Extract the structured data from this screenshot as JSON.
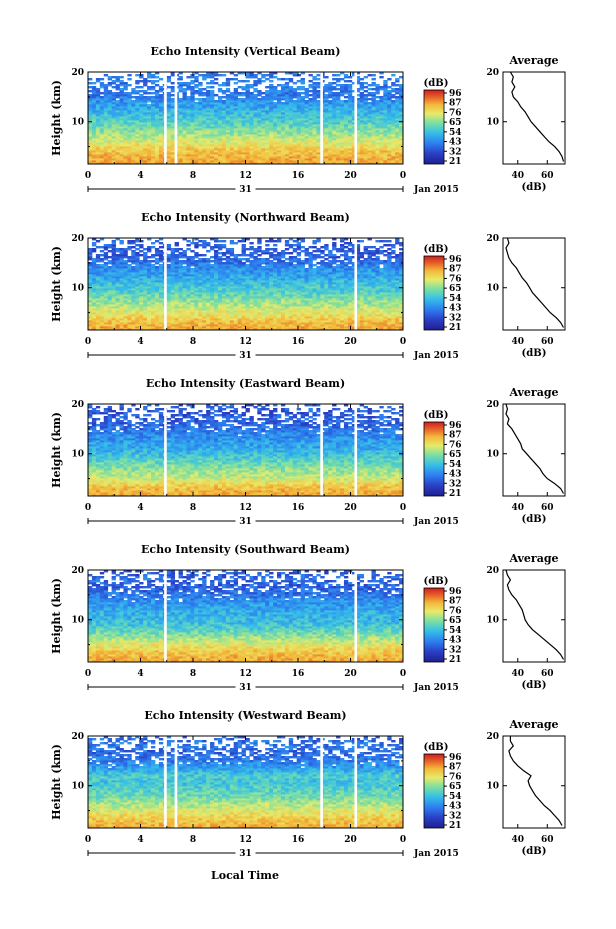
{
  "figure": {
    "xlabel": "Local Time",
    "date_label": "Jan 2015",
    "day_label": "31",
    "colorbar_unit": "(dB)",
    "colorbar_ticks": [
      "96",
      "87",
      "76",
      "65",
      "54",
      "43",
      "32",
      "21"
    ],
    "avg_title": "Average",
    "avg_xlabel": "(dB)",
    "ylabel": "Height (km)"
  },
  "chart_data": [
    {
      "type": "heatmap",
      "title": "Echo Intensity (Vertical Beam)",
      "xlabel": "Local Time",
      "ylabel": "Height (km)",
      "x_ticks": [
        "0",
        "4",
        "8",
        "12",
        "16",
        "20",
        "0"
      ],
      "xlim": [
        0,
        24
      ],
      "y_ticks": [
        "10",
        "20"
      ],
      "ylim": [
        1.5,
        20
      ],
      "color_scale": {
        "min": 21,
        "max": 96,
        "unit": "dB",
        "colors": [
          "#1f1f8f",
          "#2b3fc6",
          "#2d7ff0",
          "#35bfe8",
          "#7fe0a0",
          "#e8ea6a",
          "#f3b93a",
          "#e8642a",
          "#cc1f1f"
        ]
      },
      "gap_hours": [
        [
          5.8,
          6.0
        ],
        [
          6.6,
          6.8
        ],
        [
          17.7,
          17.9
        ],
        [
          20.3,
          20.5
        ]
      ],
      "average_profile": {
        "title": "Average",
        "xlabel": "(dB)",
        "x_ticks": [
          "40",
          "60"
        ],
        "xlim": [
          30,
          72
        ],
        "y_ticks": [
          "10",
          "20"
        ],
        "ylim": [
          1.5,
          20
        ],
        "height_km": [
          2,
          3,
          4,
          5,
          6,
          7,
          8,
          9,
          10,
          11,
          12,
          13,
          14,
          15,
          16,
          17,
          18,
          19,
          20
        ],
        "value_db": [
          71,
          70,
          68,
          65,
          61,
          58,
          55,
          52,
          49,
          47,
          45,
          42,
          40,
          37,
          36,
          38,
          36,
          37,
          35
        ]
      }
    },
    {
      "type": "heatmap",
      "title": "Echo Intensity (Northward Beam)",
      "xlabel": "Local Time",
      "ylabel": "Height (km)",
      "x_ticks": [
        "0",
        "4",
        "8",
        "12",
        "16",
        "20",
        "0"
      ],
      "xlim": [
        0,
        24
      ],
      "y_ticks": [
        "10",
        "20"
      ],
      "ylim": [
        1.5,
        20
      ],
      "color_scale": {
        "min": 21,
        "max": 96,
        "unit": "dB",
        "colors": [
          "#1f1f8f",
          "#2b3fc6",
          "#2d7ff0",
          "#35bfe8",
          "#7fe0a0",
          "#e8ea6a",
          "#f3b93a",
          "#e8642a",
          "#cc1f1f"
        ]
      },
      "gap_hours": [
        [
          5.8,
          6.0
        ],
        [
          20.3,
          20.5
        ]
      ],
      "average_profile": {
        "title": "",
        "xlabel": "(dB)",
        "x_ticks": [
          "40",
          "60"
        ],
        "xlim": [
          30,
          72
        ],
        "y_ticks": [
          "10",
          "20"
        ],
        "ylim": [
          1.5,
          20
        ],
        "height_km": [
          2,
          3,
          4,
          5,
          6,
          7,
          8,
          9,
          10,
          11,
          12,
          13,
          14,
          15,
          16,
          17,
          18,
          19,
          20
        ],
        "value_db": [
          71,
          69,
          66,
          62,
          59,
          56,
          53,
          50,
          48,
          46,
          43,
          41,
          39,
          36,
          34,
          33,
          32,
          34,
          33
        ]
      }
    },
    {
      "type": "heatmap",
      "title": "Echo Intensity (Eastward Beam)",
      "xlabel": "Local Time",
      "ylabel": "Height (km)",
      "x_ticks": [
        "0",
        "4",
        "8",
        "12",
        "16",
        "20",
        "0"
      ],
      "xlim": [
        0,
        24
      ],
      "y_ticks": [
        "10",
        "20"
      ],
      "ylim": [
        1.5,
        20
      ],
      "color_scale": {
        "min": 21,
        "max": 96,
        "unit": "dB",
        "colors": [
          "#1f1f8f",
          "#2b3fc6",
          "#2d7ff0",
          "#35bfe8",
          "#7fe0a0",
          "#e8ea6a",
          "#f3b93a",
          "#e8642a",
          "#cc1f1f"
        ]
      },
      "gap_hours": [
        [
          5.8,
          6.0
        ],
        [
          17.7,
          17.9
        ],
        [
          20.3,
          20.5
        ]
      ],
      "average_profile": {
        "title": "Average",
        "xlabel": "(dB)",
        "x_ticks": [
          "40",
          "60"
        ],
        "xlim": [
          30,
          72
        ],
        "y_ticks": [
          "10",
          "20"
        ],
        "ylim": [
          1.5,
          20
        ],
        "height_km": [
          2,
          3,
          4,
          5,
          6,
          7,
          8,
          9,
          10,
          11,
          12,
          13,
          14,
          15,
          16,
          17,
          18,
          19,
          20
        ],
        "value_db": [
          71,
          69,
          65,
          60,
          57,
          55,
          52,
          49,
          46,
          43,
          42,
          40,
          38,
          36,
          33,
          34,
          32,
          33,
          32
        ]
      }
    },
    {
      "type": "heatmap",
      "title": "Echo Intensity (Southward Beam)",
      "xlabel": "Local Time",
      "ylabel": "Height (km)",
      "x_ticks": [
        "0",
        "4",
        "8",
        "12",
        "16",
        "20",
        "0"
      ],
      "xlim": [
        0,
        24
      ],
      "y_ticks": [
        "10",
        "20"
      ],
      "ylim": [
        1.5,
        20
      ],
      "color_scale": {
        "min": 21,
        "max": 96,
        "unit": "dB",
        "colors": [
          "#1f1f8f",
          "#2b3fc6",
          "#2d7ff0",
          "#35bfe8",
          "#7fe0a0",
          "#e8ea6a",
          "#f3b93a",
          "#e8642a",
          "#cc1f1f"
        ]
      },
      "gap_hours": [
        [
          5.8,
          6.0
        ],
        [
          20.3,
          20.5
        ]
      ],
      "average_profile": {
        "title": "Average",
        "xlabel": "(dB)",
        "x_ticks": [
          "40",
          "60"
        ],
        "xlim": [
          30,
          72
        ],
        "y_ticks": [
          "10",
          "20"
        ],
        "ylim": [
          1.5,
          20
        ],
        "height_km": [
          2,
          3,
          4,
          5,
          6,
          7,
          8,
          9,
          10,
          11,
          12,
          13,
          14,
          15,
          16,
          17,
          18,
          19,
          20
        ],
        "value_db": [
          71,
          69,
          66,
          62,
          58,
          54,
          50,
          47,
          45,
          44,
          43,
          41,
          39,
          36,
          34,
          33,
          35,
          33,
          32
        ]
      }
    },
    {
      "type": "heatmap",
      "title": "Echo Intensity (Westward Beam)",
      "xlabel": "Local Time",
      "ylabel": "Height (km)",
      "x_ticks": [
        "0",
        "4",
        "8",
        "12",
        "16",
        "20",
        "0"
      ],
      "xlim": [
        0,
        24
      ],
      "y_ticks": [
        "10",
        "20"
      ],
      "ylim": [
        1.5,
        20
      ],
      "color_scale": {
        "min": 21,
        "max": 96,
        "unit": "dB",
        "colors": [
          "#1f1f8f",
          "#2b3fc6",
          "#2d7ff0",
          "#35bfe8",
          "#7fe0a0",
          "#e8ea6a",
          "#f3b93a",
          "#e8642a",
          "#cc1f1f"
        ]
      },
      "gap_hours": [
        [
          5.8,
          6.0
        ],
        [
          6.6,
          6.8
        ],
        [
          17.7,
          17.9
        ],
        [
          20.3,
          20.5
        ]
      ],
      "average_profile": {
        "title": "Average",
        "xlabel": "(dB)",
        "x_ticks": [
          "40",
          "60"
        ],
        "xlim": [
          30,
          72
        ],
        "y_ticks": [
          "10",
          "20"
        ],
        "ylim": [
          1.5,
          20
        ],
        "height_km": [
          2,
          3,
          4,
          5,
          6,
          7,
          8,
          9,
          10,
          11,
          12,
          13,
          14,
          15,
          16,
          17,
          18,
          19,
          20
        ],
        "value_db": [
          70,
          68,
          65,
          62,
          58,
          55,
          52,
          50,
          48,
          47,
          49,
          44,
          40,
          37,
          35,
          34,
          37,
          35,
          35
        ]
      }
    }
  ]
}
